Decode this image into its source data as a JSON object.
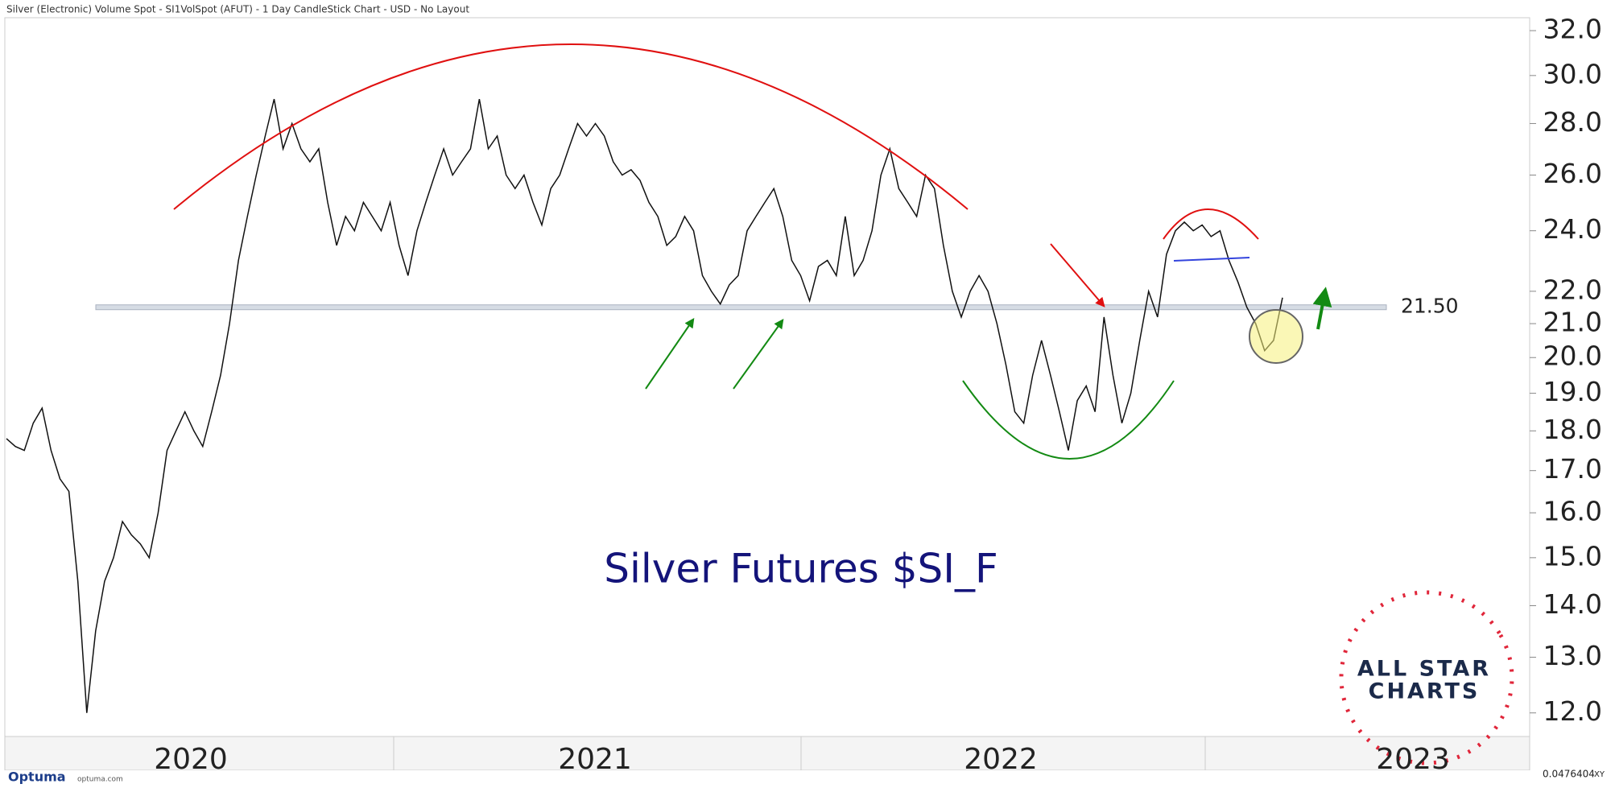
{
  "header": {
    "title": "Silver (Electronic) Volume Spot - SI1VolSpot (AFUT) - 1 Day CandleStick Chart - USD - No Layout"
  },
  "chart_data": {
    "type": "line",
    "color": "#111111",
    "log_scale": true,
    "x_labels": [
      "2020",
      "2021",
      "2022",
      "2023"
    ],
    "values": [
      17.8,
      17.6,
      17.5,
      18.2,
      18.6,
      17.5,
      16.8,
      16.5,
      14.5,
      12.0,
      13.5,
      14.5,
      15.0,
      15.8,
      15.5,
      15.3,
      15.0,
      16.0,
      17.5,
      18.0,
      18.5,
      18.0,
      17.6,
      18.5,
      19.5,
      21.0,
      23.0,
      24.5,
      26.0,
      27.5,
      29.0,
      27.0,
      28.0,
      27.0,
      26.5,
      27.0,
      25.0,
      23.5,
      24.5,
      24.0,
      25.0,
      24.5,
      24.0,
      25.0,
      23.5,
      22.5,
      24.0,
      25.0,
      26.0,
      27.0,
      26.0,
      26.5,
      27.0,
      29.0,
      27.0,
      27.5,
      26.0,
      25.5,
      26.0,
      25.0,
      24.2,
      25.5,
      26.0,
      27.0,
      28.0,
      27.5,
      28.0,
      27.5,
      26.5,
      26.0,
      26.2,
      25.8,
      25.0,
      24.5,
      23.5,
      23.8,
      24.5,
      24.0,
      22.5,
      22.0,
      21.6,
      22.2,
      22.5,
      24.0,
      24.5,
      25.0,
      25.5,
      24.5,
      23.0,
      22.5,
      21.7,
      22.8,
      23.0,
      22.5,
      24.5,
      22.5,
      23.0,
      24.0,
      26.0,
      27.0,
      25.5,
      25.0,
      24.5,
      26.0,
      25.5,
      23.5,
      22.0,
      21.2,
      22.0,
      22.5,
      22.0,
      21.0,
      19.8,
      18.5,
      18.2,
      19.5,
      20.5,
      19.5,
      18.5,
      17.5,
      18.8,
      19.2,
      18.5,
      21.2,
      19.5,
      18.2,
      19.0,
      20.5,
      22.0,
      21.2,
      23.2,
      24.0,
      24.3,
      24.0,
      24.2,
      23.8,
      24.0,
      23.0,
      22.3,
      21.5,
      21.0,
      20.2,
      20.5,
      21.8
    ],
    "ylim": [
      11.6,
      32.6
    ],
    "yticks": [
      {
        "value": 12,
        "label": "12.0"
      },
      {
        "value": 13,
        "label": "13.0"
      },
      {
        "value": 14,
        "label": "14.0"
      },
      {
        "value": 15,
        "label": "15.0"
      },
      {
        "value": 16,
        "label": "16.0"
      },
      {
        "value": 17,
        "label": "17.0"
      },
      {
        "value": 18,
        "label": "18.0"
      },
      {
        "value": 19,
        "label": "19.0"
      },
      {
        "value": 20,
        "label": "20.0"
      },
      {
        "value": 21,
        "label": "21.0"
      },
      {
        "value": 22,
        "label": "22.0"
      },
      {
        "value": 24,
        "label": "24.0"
      },
      {
        "value": 26,
        "label": "26.0"
      },
      {
        "value": 28,
        "label": "28.0"
      },
      {
        "value": 30,
        "label": "30.0"
      },
      {
        "value": 32,
        "label": "32.0"
      }
    ],
    "level": {
      "value": 21.5,
      "label": "21.50"
    },
    "annotation": "Silver Futures $SI_F"
  },
  "logo": {
    "line1": "ALL STAR",
    "line2": "CHARTS"
  },
  "footer": {
    "brand": "Optuma",
    "site": "optuma.com",
    "readout": "0.0476404",
    "mode": "XY"
  }
}
